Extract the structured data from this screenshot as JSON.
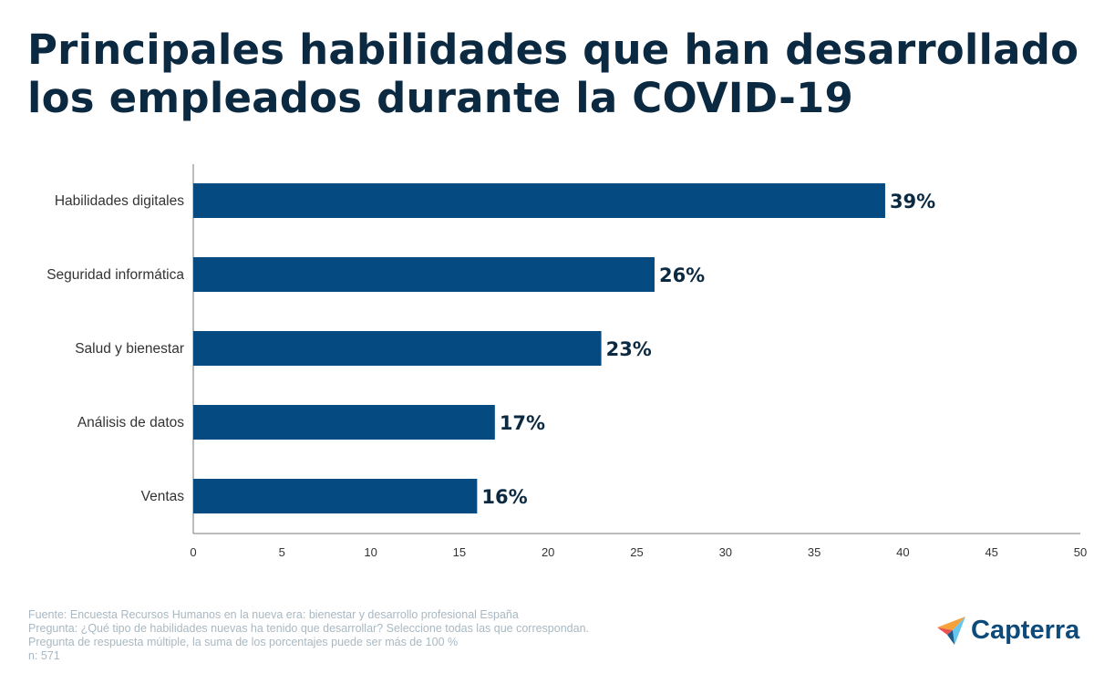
{
  "title": "Principales habilidades que han desarrollado los empleados durante la COVID-19",
  "chart_data": {
    "type": "bar",
    "orientation": "horizontal",
    "categories": [
      "Habilidades digitales",
      "Seguridad informática",
      "Salud y bienestar",
      "Análisis de datos",
      "Ventas"
    ],
    "values": [
      39,
      26,
      23,
      17,
      16
    ],
    "data_labels": [
      "39%",
      "26%",
      "23%",
      "17%",
      "16%"
    ],
    "xlim": [
      0,
      50
    ],
    "xticks": [
      0,
      5,
      10,
      15,
      20,
      25,
      30,
      35,
      40,
      45,
      50
    ],
    "grid": false,
    "bar_color": "#054a80",
    "label_color": "#0b2a42"
  },
  "footer": {
    "lines": [
      "Fuente: Encuesta Recursos Humanos en la nueva era: bienestar y desarrollo profesional España",
      "Pregunta: ¿Qué tipo de habilidades nuevas ha tenido que desarrollar? Seleccione todas las que correspondan.",
      "Pregunta de respuesta múltiple, la suma de los porcentajes puede ser más de 100 %",
      "n: 571"
    ]
  },
  "logo": {
    "text": "Capterra",
    "icon": "capterra-arrow-icon"
  }
}
